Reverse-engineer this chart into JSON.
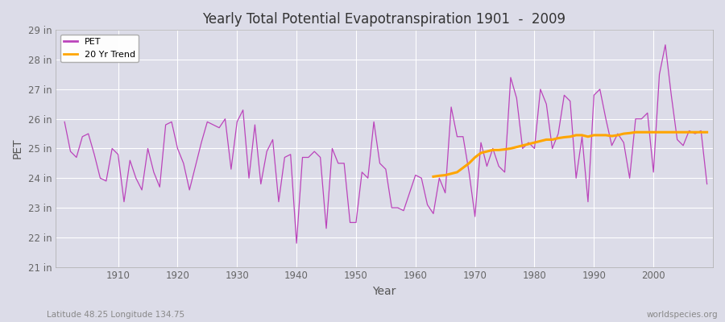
{
  "title": "Yearly Total Potential Evapotranspiration 1901  -  2009",
  "xlabel": "Year",
  "ylabel": "PET",
  "subtitle": "Latitude 48.25 Longitude 134.75",
  "watermark": "worldspecies.org",
  "ylim": [
    21,
    29
  ],
  "yticks": [
    21,
    22,
    23,
    24,
    25,
    26,
    27,
    28,
    29
  ],
  "ytick_labels": [
    "21 in",
    "22 in",
    "23 in",
    "24 in",
    "25 in",
    "26 in",
    "27 in",
    "28 in",
    "29 in"
  ],
  "xlim": [
    1899.5,
    2010
  ],
  "xticks": [
    1910,
    1920,
    1930,
    1940,
    1950,
    1960,
    1970,
    1980,
    1990,
    2000
  ],
  "pet_color": "#bb44bb",
  "trend_color": "#ffa500",
  "fig_bg_color": "#dcdce8",
  "ax_bg_color": "#dcdce8",
  "grid_color": "#ffffff",
  "pet_years": [
    1901,
    1902,
    1903,
    1904,
    1905,
    1906,
    1907,
    1908,
    1909,
    1910,
    1911,
    1912,
    1913,
    1914,
    1915,
    1916,
    1917,
    1918,
    1919,
    1920,
    1921,
    1922,
    1923,
    1924,
    1925,
    1926,
    1927,
    1928,
    1929,
    1930,
    1931,
    1932,
    1933,
    1934,
    1935,
    1936,
    1937,
    1938,
    1939,
    1940,
    1941,
    1942,
    1943,
    1944,
    1945,
    1946,
    1947,
    1948,
    1949,
    1950,
    1951,
    1952,
    1953,
    1954,
    1955,
    1956,
    1957,
    1958,
    1959,
    1960,
    1961,
    1962,
    1963,
    1964,
    1965,
    1966,
    1967,
    1968,
    1969,
    1970,
    1971,
    1972,
    1973,
    1974,
    1975,
    1976,
    1977,
    1978,
    1979,
    1980,
    1981,
    1982,
    1983,
    1984,
    1985,
    1986,
    1987,
    1988,
    1989,
    1990,
    1991,
    1992,
    1993,
    1994,
    1995,
    1996,
    1997,
    1998,
    1999,
    2000,
    2001,
    2002,
    2003,
    2004,
    2005,
    2006,
    2007,
    2008,
    2009
  ],
  "pet_values": [
    25.9,
    24.9,
    24.7,
    25.4,
    25.5,
    24.8,
    24.0,
    23.9,
    25.0,
    24.8,
    23.2,
    24.6,
    24.0,
    23.6,
    25.0,
    24.2,
    23.7,
    25.8,
    25.9,
    25.0,
    24.5,
    23.6,
    24.4,
    25.2,
    25.9,
    25.8,
    25.7,
    26.0,
    24.3,
    25.9,
    26.3,
    24.0,
    25.8,
    23.8,
    24.9,
    25.3,
    23.2,
    24.7,
    24.8,
    21.8,
    24.7,
    24.7,
    24.9,
    24.7,
    22.3,
    25.0,
    24.5,
    24.5,
    22.5,
    22.5,
    24.2,
    24.0,
    25.9,
    24.5,
    24.3,
    23.0,
    23.0,
    22.9,
    23.5,
    24.1,
    24.0,
    23.1,
    22.8,
    24.0,
    23.5,
    26.4,
    25.4,
    25.4,
    24.2,
    22.7,
    25.2,
    24.4,
    25.0,
    24.4,
    24.2,
    27.4,
    26.7,
    25.0,
    25.2,
    25.0,
    27.0,
    26.5,
    25.0,
    25.5,
    26.8,
    26.6,
    24.0,
    25.4,
    23.2,
    26.8,
    27.0,
    26.0,
    25.1,
    25.5,
    25.2,
    24.0,
    26.0,
    26.0,
    26.2,
    24.2,
    27.5,
    28.5,
    26.8,
    25.3,
    25.1,
    25.6,
    25.5,
    25.6,
    23.8
  ],
  "trend_years": [
    1963,
    1964,
    1965,
    1966,
    1967,
    1968,
    1969,
    1970,
    1971,
    1972,
    1973,
    1974,
    1975,
    1976,
    1977,
    1978,
    1979,
    1980,
    1981,
    1982,
    1983,
    1984,
    1985,
    1986,
    1987,
    1988,
    1989,
    1990,
    1991,
    1992,
    1993,
    1994,
    1995,
    1996,
    1997,
    1998,
    1999,
    2000,
    2001,
    2002,
    2003,
    2004,
    2005,
    2006,
    2007,
    2008,
    2009
  ],
  "trend_values": [
    24.05,
    24.08,
    24.1,
    24.15,
    24.2,
    24.35,
    24.5,
    24.7,
    24.85,
    24.9,
    24.95,
    24.95,
    24.97,
    25.0,
    25.05,
    25.1,
    25.15,
    25.2,
    25.25,
    25.3,
    25.3,
    25.35,
    25.38,
    25.4,
    25.45,
    25.45,
    25.4,
    25.45,
    25.45,
    25.45,
    25.42,
    25.45,
    25.5,
    25.52,
    25.55,
    25.55,
    25.55,
    25.55,
    25.55,
    25.55,
    25.55,
    25.55,
    25.55,
    25.55,
    25.55,
    25.55,
    25.55
  ]
}
